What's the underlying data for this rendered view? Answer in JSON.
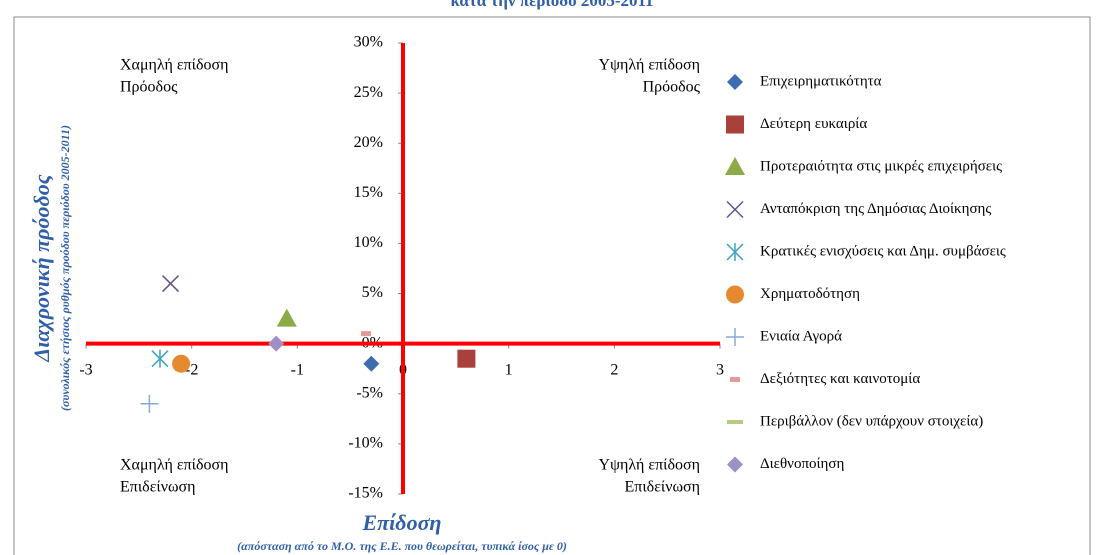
{
  "chart_data": {
    "type": "scatter",
    "title": "κατά την περίοδο 2005-2011",
    "x_label": "Επίδοση",
    "x_sublabel": "(απόσταση από το Μ.Ο. της Ε.Ε. που θεωρείται, τυπικά ίσος με 0)",
    "y_label": "Διαχρονική πρόοδος",
    "y_sublabel": "(συνολικός ετήσιος ρυθμός προόδου περιόδου 2005-2011)",
    "xlim": [
      -3,
      3
    ],
    "ylim": [
      -15,
      30
    ],
    "xticks": [
      -3,
      -2,
      -1,
      0,
      1,
      2,
      3
    ],
    "yticks": [
      {
        "value": 30,
        "label": "30%"
      },
      {
        "value": 25,
        "label": "25%"
      },
      {
        "value": 20,
        "label": "20%"
      },
      {
        "value": 15,
        "label": "15%"
      },
      {
        "value": 10,
        "label": "10%"
      },
      {
        "value": 5,
        "label": "5%"
      },
      {
        "value": 0,
        "label": "0%"
      },
      {
        "value": -5,
        "label": "-5%"
      },
      {
        "value": -10,
        "label": "-10%"
      },
      {
        "value": -15,
        "label": "-15%"
      }
    ],
    "axis_line_color": "#ff0000",
    "legend": "right",
    "annotations": [
      {
        "lines": [
          "Χαμηλή επίδοση",
          "Πρόοδος"
        ],
        "corner": "top-left"
      },
      {
        "lines": [
          "Υψηλή επίδοση",
          "Πρόοδος"
        ],
        "corner": "top-right"
      },
      {
        "lines": [
          "Χαμηλή επίδοση",
          "Επιδείνωση"
        ],
        "corner": "bottom-left"
      },
      {
        "lines": [
          "Υψηλή επίδοση",
          "Επιδείνωση"
        ],
        "corner": "bottom-right"
      }
    ],
    "series": [
      {
        "name": "Επιχειρηματικότητα",
        "color": "#3e6cb0",
        "marker": "diamond",
        "x": [
          -0.3
        ],
        "y": [
          -2
        ]
      },
      {
        "name": "Δεύτερη ευκαιρία",
        "color": "#a9403b",
        "marker": "square",
        "x": [
          0.6
        ],
        "y": [
          -1.5
        ]
      },
      {
        "name": "Προτεραιότητα στις μικρές επιχειρήσεις",
        "color": "#8aab46",
        "marker": "triangle",
        "x": [
          -1.1
        ],
        "y": [
          2.5
        ]
      },
      {
        "name": "Ανταπόκριση της Δημόσιας Διοίκησης",
        "color": "#6a4e8a",
        "marker": "x",
        "x": [
          -2.2
        ],
        "y": [
          6
        ]
      },
      {
        "name": "Κρατικές ενισχύσεις και Δημ. συμβάσεις",
        "color": "#3aa3c0",
        "marker": "asterisk",
        "x": [
          -2.3
        ],
        "y": [
          -1.5
        ]
      },
      {
        "name": "Χρηματοδότηση",
        "color": "#e6892f",
        "marker": "circle",
        "x": [
          -2.1
        ],
        "y": [
          -2
        ]
      },
      {
        "name": "Ενιαία Αγορά",
        "color": "#8aa8d8",
        "marker": "plus",
        "x": [
          -2.4
        ],
        "y": [
          -6
        ]
      },
      {
        "name": "Δεξιότητες και καινοτομία",
        "color": "#e39a98",
        "marker": "dash",
        "x": [
          -0.35
        ],
        "y": [
          1
        ]
      },
      {
        "name": "Περιβάλλον (δεν υπάρχουν στοιχεία)",
        "color": "#b3cc80",
        "marker": "line",
        "x": [],
        "y": []
      },
      {
        "name": "Διεθνοποίηση",
        "color": "#a08fc6",
        "marker": "diamond",
        "x": [
          -1.2
        ],
        "y": [
          0
        ]
      }
    ]
  }
}
